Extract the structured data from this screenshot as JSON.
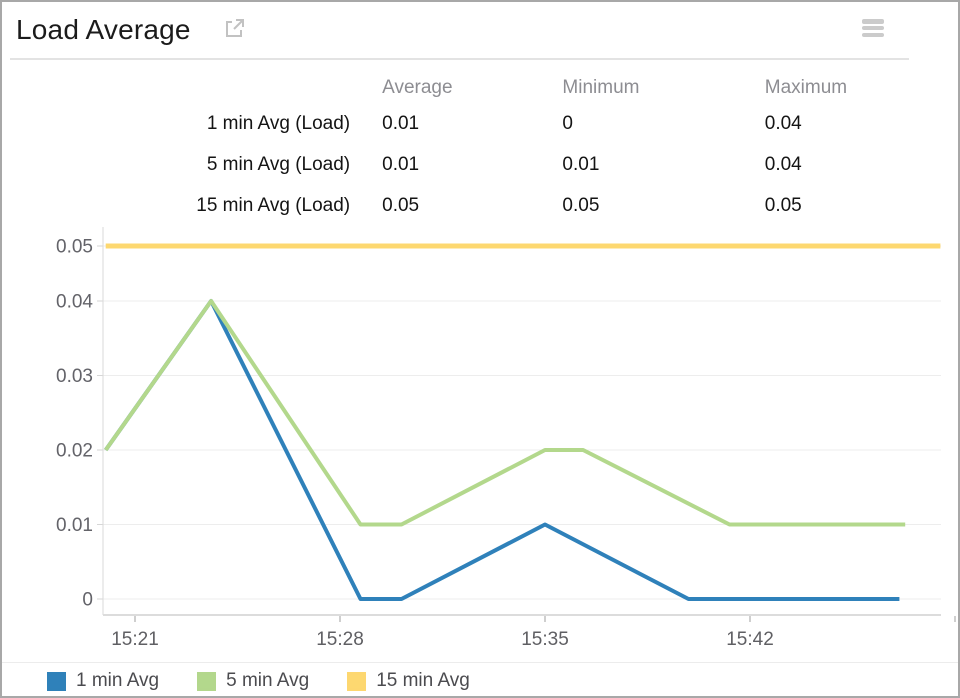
{
  "widget": {
    "title": "Load Average"
  },
  "stats_table": {
    "columns": [
      "Average",
      "Minimum",
      "Maximum"
    ],
    "rows": [
      {
        "label": "1 min Avg (Load)",
        "values": [
          "0.01",
          "0",
          "0.04"
        ]
      },
      {
        "label": "5 min Avg (Load)",
        "values": [
          "0.01",
          "0.01",
          "0.04"
        ]
      },
      {
        "label": "15 min Avg (Load)",
        "values": [
          "0.05",
          "0.05",
          "0.05"
        ]
      }
    ]
  },
  "chart_data": {
    "type": "line",
    "title": "Load Average",
    "x_unit": "minutes after 15:00",
    "x_axis": {
      "tick_minutes": [
        21,
        28,
        35,
        42
      ],
      "tick_labels": [
        "15:21",
        "15:28",
        "15:35",
        "15:42"
      ],
      "extra_unlabeled_tick_minute": 49,
      "range_minutes": [
        19.9,
        48.6
      ]
    },
    "y_axis": {
      "tick_values": [
        0,
        0.01,
        0.02,
        0.03,
        0.04,
        0.05
      ],
      "tick_labels": [
        "0",
        "0.01",
        "0.02",
        "0.03",
        "0.04",
        "0.05"
      ],
      "range": [
        0,
        0.05
      ]
    },
    "grid": true,
    "legend_position": "bottom",
    "series": [
      {
        "name": "1 min Avg",
        "color": "#2f81ba",
        "points": [
          [
            20.0,
            0.02
          ],
          [
            23.6,
            0.04
          ],
          [
            28.7,
            0
          ],
          [
            30.1,
            0
          ],
          [
            35.0,
            0.01
          ],
          [
            39.9,
            0
          ],
          [
            47.1,
            0
          ]
        ]
      },
      {
        "name": "5 min Avg",
        "color": "#b3d88c",
        "points": [
          [
            20.0,
            0.02
          ],
          [
            23.6,
            0.04
          ],
          [
            28.7,
            0.01
          ],
          [
            30.1,
            0.01
          ],
          [
            35.0,
            0.02
          ],
          [
            36.3,
            0.02
          ],
          [
            41.3,
            0.01
          ],
          [
            47.3,
            0.01
          ]
        ]
      },
      {
        "name": "15 min Avg",
        "color": "#fdd870",
        "points": [
          [
            20.0,
            0.05
          ],
          [
            48.5,
            0.05
          ]
        ]
      }
    ]
  }
}
